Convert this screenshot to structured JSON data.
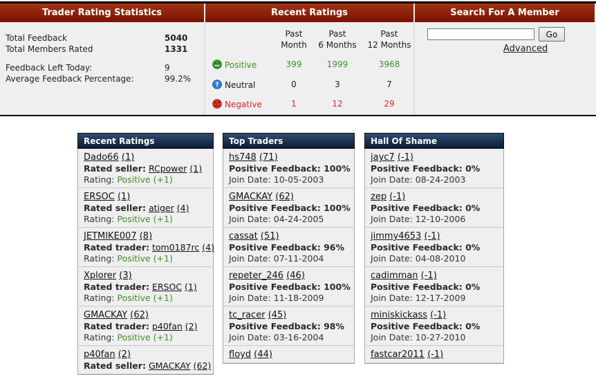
{
  "colors": {
    "header_red_top": "#a23414",
    "header_red_bottom": "#7a1100",
    "panel_header_navy_top": "#2e4d6e",
    "panel_header_navy_bottom": "#0b1c35",
    "positive_green": "#3f8d25",
    "negative_red": "#e32222",
    "section_bg_gray": "#efefef"
  },
  "top": {
    "trader_stats": {
      "title": "Trader Rating Statistics",
      "rows": [
        {
          "label": "Total Feedback",
          "value": "5040"
        },
        {
          "label": "Total Members Rated",
          "value": "1331"
        },
        {
          "label": "Feedback Left Today:",
          "value": "9"
        },
        {
          "label": "Average Feedback Percentage:",
          "value": "99.2%"
        }
      ]
    },
    "recent_ratings": {
      "title": "Recent Ratings",
      "col_headers": [
        [
          "Past",
          "Month"
        ],
        [
          "Past",
          "6 Months"
        ],
        [
          "Past",
          "12 Months"
        ]
      ],
      "rows": [
        {
          "label": "Positive",
          "icon": "positive-smiley-icon",
          "values": [
            "399",
            "1999",
            "3968"
          ]
        },
        {
          "label": "Neutral",
          "icon": "neutral-smiley-icon",
          "values": [
            "0",
            "3",
            "7"
          ]
        },
        {
          "label": "Negative",
          "icon": "negative-smiley-icon",
          "values": [
            "1",
            "12",
            "29"
          ]
        }
      ]
    },
    "search": {
      "title": "Search For A Member",
      "input_value": "",
      "go_label": "Go",
      "advanced_label": "Advanced"
    }
  },
  "panels": [
    {
      "title": "Recent Ratings",
      "type": "rating",
      "entries": [
        {
          "user": "Dado66",
          "user_count": "(1)",
          "role": "Rated seller:",
          "target": "RCpower",
          "target_count": "(1)",
          "rating_label": "Rating:",
          "rating_text": "Positive (+1)"
        },
        {
          "user": "ERSOC",
          "user_count": "(1)",
          "role": "Rated seller:",
          "target": "atiger",
          "target_count": "(4)",
          "rating_label": "Rating:",
          "rating_text": "Positive (+1)"
        },
        {
          "user": "JETMIKE007",
          "user_count": "(8)",
          "role": "Rated trader:",
          "target": "tom0187rc",
          "target_count": "(4)",
          "rating_label": "Rating:",
          "rating_text": "Positive (+1)"
        },
        {
          "user": "Xplorer",
          "user_count": "(3)",
          "role": "Rated trader:",
          "target": "ERSOC",
          "target_count": "(1)",
          "rating_label": "Rating:",
          "rating_text": "Positive (+1)"
        },
        {
          "user": "GMACKAY",
          "user_count": "(62)",
          "role": "Rated trader:",
          "target": "p40fan",
          "target_count": "(2)",
          "rating_label": "Rating:",
          "rating_text": "Positive (+1)"
        },
        {
          "user": "p40fan",
          "user_count": "(2)",
          "role": "Rated seller:",
          "target": "GMACKAY",
          "target_count": "(62)",
          "rating_label": "",
          "rating_text": ""
        }
      ]
    },
    {
      "title": "Top Traders",
      "type": "trader",
      "entries": [
        {
          "user": "hs748",
          "user_count": "(71)",
          "feedback": "Positive Feedback: 100%",
          "join": "Join Date: 10-05-2003"
        },
        {
          "user": "GMACKAY",
          "user_count": "(62)",
          "feedback": "Positive Feedback: 100%",
          "join": "Join Date: 04-24-2005"
        },
        {
          "user": "cassat",
          "user_count": "(51)",
          "feedback": "Positive Feedback: 96%",
          "join": "Join Date: 07-11-2004"
        },
        {
          "user": "repeter_246",
          "user_count": "(46)",
          "feedback": "Positive Feedback: 100%",
          "join": "Join Date: 11-18-2009"
        },
        {
          "user": "tc_racer",
          "user_count": "(45)",
          "feedback": "Positive Feedback: 98%",
          "join": "Join Date: 03-16-2004"
        },
        {
          "user": "floyd",
          "user_count": "(44)",
          "feedback": "",
          "join": ""
        }
      ]
    },
    {
      "title": "Hall Of Shame",
      "type": "trader",
      "entries": [
        {
          "user": "jayc7",
          "user_count": "(-1)",
          "feedback": "Positive Feedback: 0%",
          "join": "Join Date: 08-24-2003"
        },
        {
          "user": "zep",
          "user_count": "(-1)",
          "feedback": "Positive Feedback: 0%",
          "join": "Join Date: 12-10-2006"
        },
        {
          "user": "jimmy4653",
          "user_count": "(-1)",
          "feedback": "Positive Feedback: 0%",
          "join": "Join Date: 04-08-2010"
        },
        {
          "user": "cadimman",
          "user_count": "(-1)",
          "feedback": "Positive Feedback: 0%",
          "join": "Join Date: 12-17-2009"
        },
        {
          "user": "miniskickass",
          "user_count": "(-1)",
          "feedback": "Positive Feedback: 0%",
          "join": "Join Date: 10-27-2010"
        },
        {
          "user": "fastcar2011",
          "user_count": "(-1)",
          "feedback": "",
          "join": ""
        }
      ]
    }
  ]
}
